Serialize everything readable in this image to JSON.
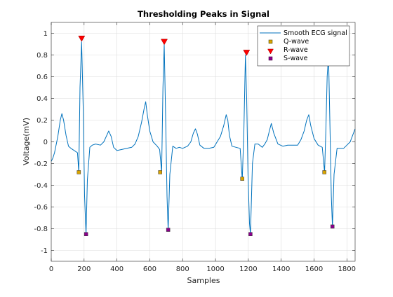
{
  "chart_data": {
    "type": "line",
    "title": "Thresholding Peaks in Signal",
    "xlabel": "Samples",
    "ylabel": "Voltage(mV)",
    "xlim": [
      0,
      1850
    ],
    "ylim": [
      -1.1,
      1.1
    ],
    "xticks": [
      0,
      200,
      400,
      600,
      800,
      1000,
      1200,
      1400,
      1600,
      1800
    ],
    "yticks": [
      -1,
      -0.8,
      -0.6,
      -0.4,
      -0.2,
      0,
      0.2,
      0.4,
      0.6,
      0.8,
      1
    ],
    "ytick_labels": [
      "-1",
      "-0.8",
      "-0.6",
      "-0.4",
      "-0.2",
      "0",
      "0.2",
      "0.4",
      "0.6",
      "0.8",
      "1"
    ],
    "grid": true,
    "legend_position": "top-right",
    "series": [
      {
        "name": "Smooth ECG signal",
        "kind": "line",
        "color": "#0072BD",
        "x": [
          0,
          10,
          20,
          40,
          55,
          65,
          75,
          90,
          105,
          120,
          140,
          160,
          168,
          175,
          185,
          195,
          203,
          212,
          220,
          235,
          250,
          270,
          300,
          320,
          335,
          350,
          365,
          380,
          400,
          430,
          460,
          490,
          510,
          530,
          550,
          565,
          575,
          585,
          600,
          620,
          645,
          660,
          672,
          680,
          688,
          697,
          705,
          712,
          722,
          740,
          760,
          780,
          800,
          830,
          850,
          865,
          878,
          890,
          905,
          930,
          960,
          990,
          1010,
          1030,
          1050,
          1065,
          1075,
          1085,
          1100,
          1125,
          1150,
          1163,
          1173,
          1182,
          1190,
          1198,
          1207,
          1213,
          1225,
          1240,
          1260,
          1285,
          1300,
          1315,
          1328,
          1340,
          1355,
          1380,
          1410,
          1440,
          1470,
          1500,
          1520,
          1540,
          1555,
          1568,
          1580,
          1600,
          1625,
          1650,
          1664,
          1672,
          1680,
          1688,
          1696,
          1705,
          1712,
          1722,
          1740,
          1760,
          1780,
          1800,
          1820,
          1835,
          1850
        ],
        "y": [
          -0.18,
          -0.15,
          -0.1,
          0.05,
          0.2,
          0.26,
          0.2,
          0.06,
          -0.04,
          -0.06,
          -0.08,
          -0.1,
          -0.28,
          0.5,
          0.92,
          0.3,
          -0.5,
          -0.85,
          -0.35,
          -0.05,
          -0.03,
          -0.02,
          -0.03,
          0.0,
          0.05,
          0.1,
          0.05,
          -0.05,
          -0.08,
          -0.07,
          -0.06,
          -0.05,
          -0.02,
          0.05,
          0.18,
          0.3,
          0.37,
          0.25,
          0.1,
          0.0,
          -0.04,
          -0.07,
          -0.28,
          0.5,
          0.9,
          0.2,
          -0.5,
          -0.81,
          -0.3,
          -0.04,
          -0.06,
          -0.05,
          -0.06,
          -0.04,
          0.0,
          0.08,
          0.12,
          0.07,
          -0.03,
          -0.06,
          -0.06,
          -0.05,
          0.0,
          0.05,
          0.15,
          0.25,
          0.2,
          0.06,
          -0.04,
          -0.05,
          -0.06,
          -0.35,
          0.1,
          0.8,
          0.4,
          -0.3,
          -0.75,
          -0.85,
          -0.2,
          -0.02,
          -0.02,
          -0.05,
          -0.02,
          0.02,
          0.1,
          0.17,
          0.08,
          -0.02,
          -0.04,
          -0.03,
          -0.03,
          -0.03,
          0.02,
          0.1,
          0.2,
          0.25,
          0.15,
          0.03,
          -0.03,
          -0.05,
          -0.28,
          0.1,
          0.6,
          0.8,
          0.2,
          -0.5,
          -0.78,
          -0.3,
          -0.06,
          -0.06,
          -0.06,
          -0.03,
          0.0,
          0.06,
          0.12
        ]
      },
      {
        "name": "Q-wave",
        "kind": "marker",
        "marker": "square",
        "color": "#D9A400",
        "x": [
          168,
          663,
          1163,
          1663
        ],
        "y": [
          -0.28,
          -0.28,
          -0.34,
          -0.28
        ]
      },
      {
        "name": "R-wave",
        "kind": "marker",
        "marker": "triangle-down",
        "color": "#FF0000",
        "x": [
          185,
          688,
          1189
        ],
        "y": [
          0.95,
          0.92,
          0.82
        ]
      },
      {
        "name": "S-wave",
        "kind": "marker",
        "marker": "square",
        "color": "#8B008B",
        "x": [
          212,
          712,
          1213,
          1712
        ],
        "y": [
          -0.85,
          -0.81,
          -0.85,
          -0.78
        ]
      }
    ]
  }
}
